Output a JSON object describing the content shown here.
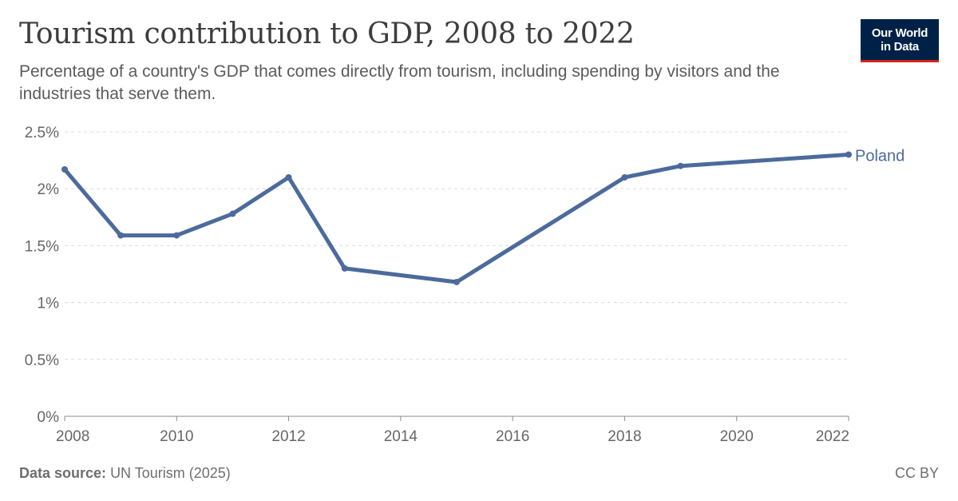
{
  "header": {
    "title": "Tourism contribution to GDP, 2008 to 2022",
    "subtitle": "Percentage of a country's GDP that comes directly from tourism, including spending by visitors and the industries that serve them."
  },
  "logo": {
    "line1": "Our World",
    "line2": "in Data",
    "bg_color": "#002147",
    "accent_color": "#ce261e"
  },
  "footer": {
    "source_label": "Data source:",
    "source_value": "UN Tourism (2025)",
    "license": "CC BY"
  },
  "chart_data": {
    "type": "line",
    "xlim": [
      2008,
      2022
    ],
    "ylim": [
      0,
      2.5
    ],
    "x_ticks": [
      {
        "value": 2008,
        "label": "2008"
      },
      {
        "value": 2010,
        "label": "2010"
      },
      {
        "value": 2012,
        "label": "2012"
      },
      {
        "value": 2014,
        "label": "2014"
      },
      {
        "value": 2016,
        "label": "2016"
      },
      {
        "value": 2018,
        "label": "2018"
      },
      {
        "value": 2020,
        "label": "2020"
      },
      {
        "value": 2022,
        "label": "2022"
      }
    ],
    "y_ticks": [
      {
        "value": 0,
        "label": "0%"
      },
      {
        "value": 0.5,
        "label": "0.5%"
      },
      {
        "value": 1,
        "label": "1%"
      },
      {
        "value": 1.5,
        "label": "1.5%"
      },
      {
        "value": 2,
        "label": "2%"
      },
      {
        "value": 2.5,
        "label": "2.5%"
      }
    ],
    "grid": true,
    "series": [
      {
        "name": "Poland",
        "color": "#4c6a9c",
        "points": [
          {
            "x": 2008,
            "y": 2.17
          },
          {
            "x": 2009,
            "y": 1.59
          },
          {
            "x": 2010,
            "y": 1.59
          },
          {
            "x": 2011,
            "y": 1.78
          },
          {
            "x": 2012,
            "y": 2.1
          },
          {
            "x": 2013,
            "y": 1.3
          },
          {
            "x": 2015,
            "y": 1.18
          },
          {
            "x": 2018,
            "y": 2.1
          },
          {
            "x": 2019,
            "y": 2.2
          },
          {
            "x": 2022,
            "y": 2.3
          }
        ]
      }
    ]
  }
}
